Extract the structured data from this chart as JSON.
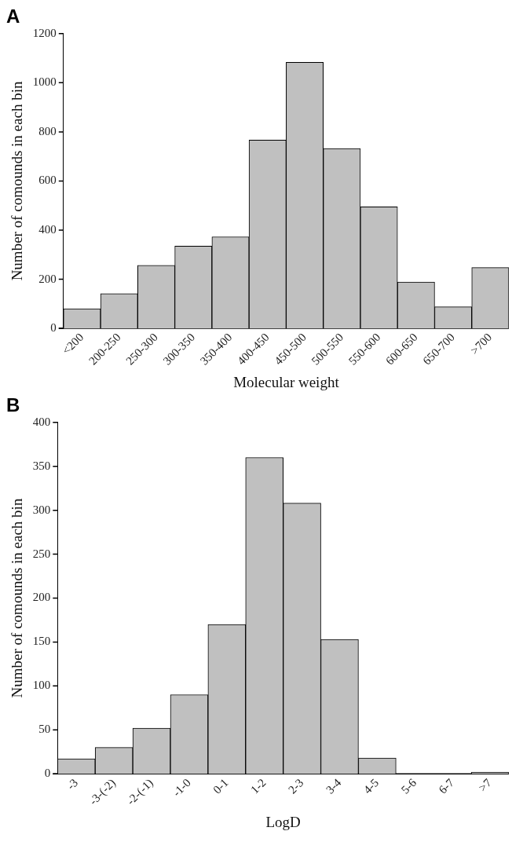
{
  "chart_data": [
    {
      "type": "bar",
      "title": "A",
      "xlabel": "Molecular weight",
      "ylabel": "Number of comounds in each bin",
      "categories": [
        "<200",
        "200-250",
        "250-300",
        "300-350",
        "350-400",
        "400-450",
        "450-500",
        "500-550",
        "550-600",
        "600-650",
        "650-700",
        ">700"
      ],
      "values": [
        80,
        142,
        257,
        335,
        373,
        767,
        1083,
        732,
        495,
        189,
        88,
        248
      ],
      "color": "#c0c0c0",
      "ylim": [
        0,
        1200
      ],
      "yticks": [
        0,
        200,
        400,
        600,
        800,
        1000,
        1200
      ]
    },
    {
      "type": "bar",
      "title": "B",
      "xlabel": "LogD",
      "ylabel": "Number of comounds in each bin",
      "categories": [
        "-3",
        "-3-(-2)",
        "-2-(-1)",
        "-1-0",
        "0-1",
        "1-2",
        "2-3",
        "3-4",
        "4-5",
        "5-6",
        "6-7",
        ">7"
      ],
      "values": [
        17,
        30,
        52,
        90,
        170,
        360,
        308,
        153,
        18,
        0,
        0,
        2
      ],
      "color": "#c0c0c0",
      "ylim": [
        0,
        400
      ],
      "yticks": [
        0,
        50,
        100,
        150,
        200,
        250,
        300,
        350,
        400
      ]
    }
  ]
}
